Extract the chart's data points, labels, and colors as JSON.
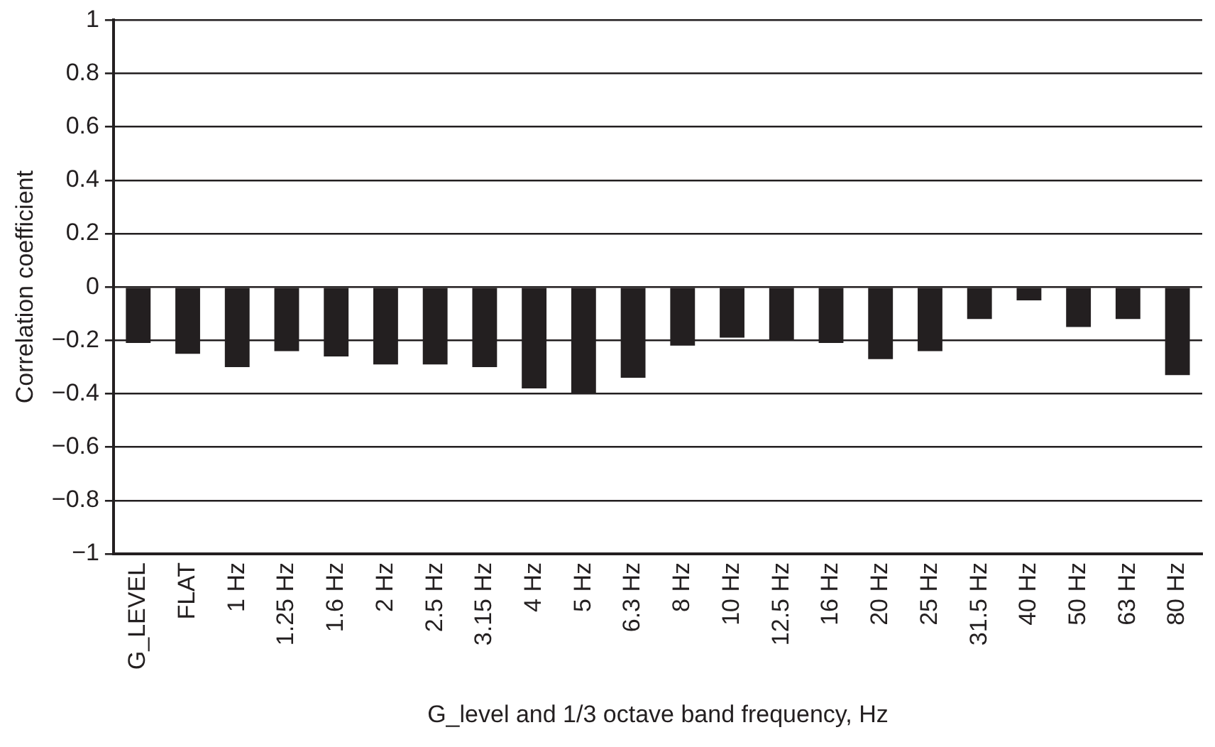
{
  "chart_data": {
    "type": "bar",
    "xlabel": "G_level and 1/3 octave band frequency, Hz",
    "ylabel": "Correlation coefficient",
    "categories": [
      "G_LEVEL",
      "FLAT",
      "1 Hz",
      "1.25 Hz",
      "1.6 Hz",
      "2 Hz",
      "2.5 Hz",
      "3.15 Hz",
      "4 Hz",
      "5 Hz",
      "6.3 Hz",
      "8 Hz",
      "10 Hz",
      "12.5 Hz",
      "16 Hz",
      "20 Hz",
      "25 Hz",
      "31.5 Hz",
      "40 Hz",
      "50 Hz",
      "63 Hz",
      "80 Hz"
    ],
    "values": [
      -0.21,
      -0.25,
      -0.3,
      -0.24,
      -0.26,
      -0.29,
      -0.29,
      -0.3,
      -0.38,
      -0.4,
      -0.34,
      -0.22,
      -0.19,
      -0.2,
      -0.21,
      -0.27,
      -0.24,
      -0.12,
      -0.05,
      -0.15,
      -0.12,
      -0.33
    ],
    "color": "#231f20",
    "ylim": [
      -1,
      1
    ],
    "yticks": [
      {
        "value": -1,
        "label": "−1"
      },
      {
        "value": -0.8,
        "label": "−0.8"
      },
      {
        "value": -0.6,
        "label": "−0.6"
      },
      {
        "value": -0.4,
        "label": "−0.4"
      },
      {
        "value": -0.2,
        "label": "−0.2"
      },
      0,
      0.2,
      0.4,
      0.6,
      0.8,
      1
    ],
    "grid": "y",
    "legend": false
  }
}
